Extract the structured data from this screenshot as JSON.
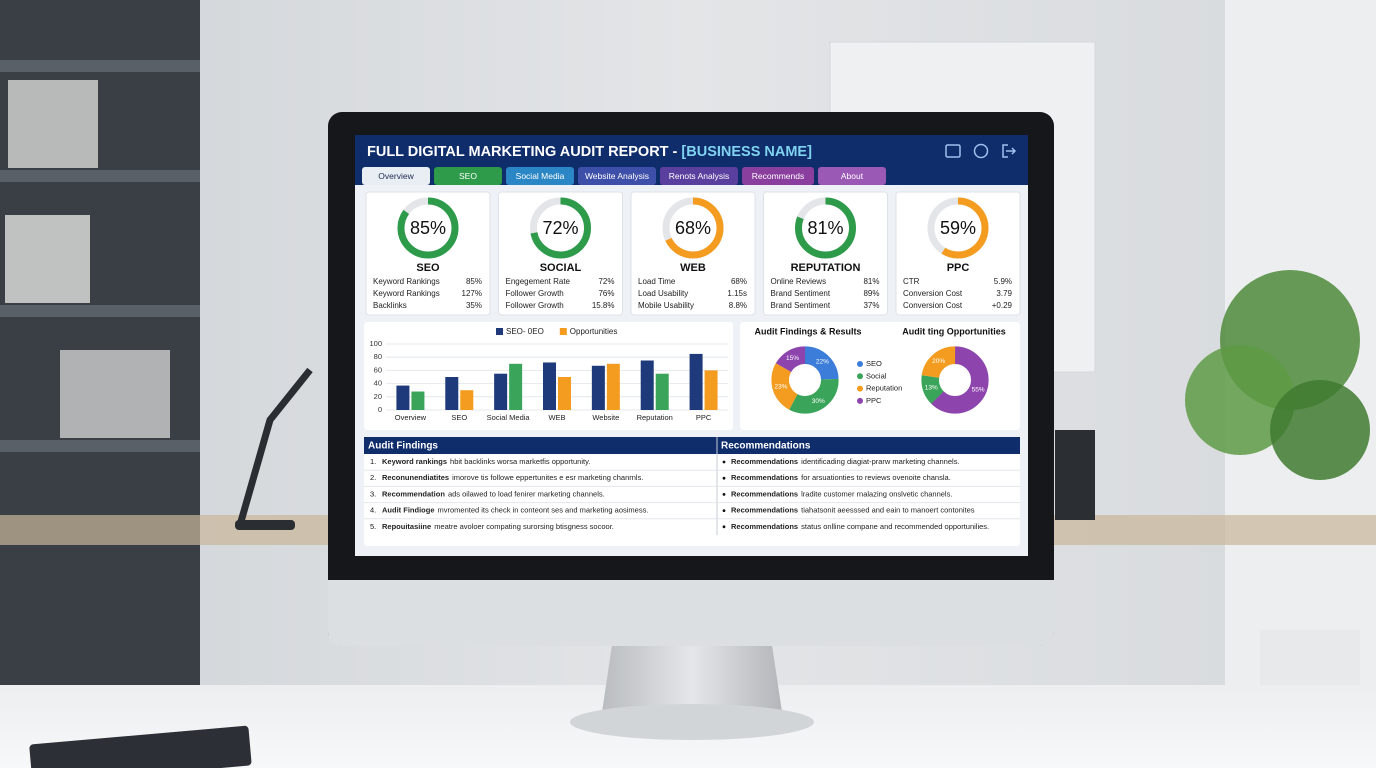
{
  "header": {
    "title": "FULL DIGITAL MARKETING AUDIT REPORT - ",
    "title_highlight": "[BUSINESS NAME]"
  },
  "tabs": [
    {
      "label": "Overview",
      "color": "#e9eef5"
    },
    {
      "label": "SEO",
      "color": "#2e9b4a"
    },
    {
      "label": "Social Media",
      "color": "#2b86c5"
    },
    {
      "label": "Website Analysis",
      "color": "#3d4fa8"
    },
    {
      "label": "Renots Analysis",
      "color": "#5a3f9e"
    },
    {
      "label": "Recommends",
      "color": "#8a3f9e"
    },
    {
      "label": "About",
      "color": "#9b59b6"
    }
  ],
  "kpis": [
    {
      "name": "SEO",
      "value": 85,
      "value_label": "85%",
      "color": "#2e9b4a",
      "rows": [
        {
          "label": "Keyword Rankings",
          "value": "85%"
        },
        {
          "label": "Keyword Rankings",
          "value": "127%"
        },
        {
          "label": "Backlinks",
          "value": "35%"
        }
      ]
    },
    {
      "name": "SOCIAL",
      "value": 72,
      "value_label": "72%",
      "color": "#2e9b4a",
      "rows": [
        {
          "label": "Engegement Rate",
          "value": "72%"
        },
        {
          "label": "Follower Growth",
          "value": "76%"
        },
        {
          "label": "Follower Growth",
          "value": "15.8%"
        }
      ]
    },
    {
      "name": "WEB",
      "value": 68,
      "value_label": "68%",
      "color": "#f39c1f",
      "rows": [
        {
          "label": "Load Time",
          "value": "68%"
        },
        {
          "label": "Load Usability",
          "value": "1.15s"
        },
        {
          "label": "Mobile Usability",
          "value": "8.8%"
        }
      ]
    },
    {
      "name": "REPUTATION",
      "value": 81,
      "value_label": "81%",
      "color": "#2e9b4a",
      "rows": [
        {
          "label": "Online Reviews",
          "value": "81%"
        },
        {
          "label": "Brand Sentiment",
          "value": "89%"
        },
        {
          "label": "Brand Sentiment",
          "value": "37%"
        }
      ]
    },
    {
      "name": "PPC",
      "value": 59,
      "value_label": "59%",
      "color": "#f39c1f",
      "rows": [
        {
          "label": "CTR",
          "value": "5.9%"
        },
        {
          "label": "Conversion Cost",
          "value": "3.79"
        },
        {
          "label": "Conversion Cost",
          "value": "+0.29"
        }
      ]
    }
  ],
  "chart_data": [
    {
      "type": "bar",
      "categories": [
        "Overview",
        "SEO",
        "Social Media",
        "WEB",
        "Website",
        "Reputation",
        "PPC"
      ],
      "series": [
        {
          "name": "SEO- 0EO",
          "color": "#1f3a7a",
          "values": [
            37,
            50,
            55,
            72,
            67,
            75,
            85
          ]
        },
        {
          "name": "Opportunities",
          "color": "#f39c1f",
          "colors": [
            "#3aa55a",
            "#f39c1f",
            "#3aa55a",
            "#f39c1f",
            "#f39c1f",
            "#3aa55a",
            "#f39c1f"
          ],
          "values": [
            28,
            30,
            70,
            50,
            70,
            55,
            60
          ]
        }
      ],
      "ylim": [
        0,
        100
      ],
      "yticks": [
        0,
        20,
        40,
        60,
        80,
        100
      ],
      "grid": true
    },
    {
      "type": "pie",
      "title": "Audit Findings & Results",
      "categories": [
        "SEO",
        "Social",
        "Reputation",
        "PPC"
      ],
      "values": [
        22,
        30,
        23,
        15
      ],
      "value_labels": [
        "22%",
        "30%",
        "23%",
        "15%"
      ],
      "colors": [
        "#3b7dd8",
        "#3aa55a",
        "#f39c1f",
        "#8e44ad"
      ]
    },
    {
      "type": "pie",
      "title": "Audit ting Opportunities",
      "categories": [
        null,
        null,
        null
      ],
      "values": [
        55,
        13,
        20
      ],
      "value_labels": [
        "55%",
        "13%",
        "20%"
      ],
      "colors": [
        "#8e44ad",
        "#3aa55a",
        "#f39c1f"
      ]
    }
  ],
  "findings": {
    "title": "Audit Findings",
    "rows": [
      {
        "num": "1.",
        "lead": "Keyword rankings",
        "text": "hbit backlinks worsa marketfis opportunity."
      },
      {
        "num": "2.",
        "lead": "Reconunendiatites",
        "text": "imorove tis followe eppertunites e esr marketing chanrnls."
      },
      {
        "num": "3.",
        "lead": "Recommendation",
        "text": "ads oilawed to load fenirer marketing channels."
      },
      {
        "num": "4.",
        "lead": "Audit Findioge",
        "text": "mvromented its check in conteont ses and marketing aosimess."
      },
      {
        "num": "5.",
        "lead": "Repouitasiine",
        "text": "meatre avoloer compating surorsing btisgness socoor."
      }
    ]
  },
  "recommendations": {
    "title": "Recommendations",
    "rows": [
      {
        "lead": "Recommendations",
        "text": "identificading diagiat-prarw marketing channels."
      },
      {
        "lead": "Recommendations",
        "text": "for arsuationties to reviews ovenoite chansla."
      },
      {
        "lead": "Recommendations",
        "text": "lradite customer rnalazing onslvetic channels."
      },
      {
        "lead": "Recommendations",
        "text": "tiahatsonit aeesssed and eain to manoert contonites"
      },
      {
        "lead": "Recommendations",
        "text": "status onlline compane and recommended opportunilies."
      }
    ]
  }
}
